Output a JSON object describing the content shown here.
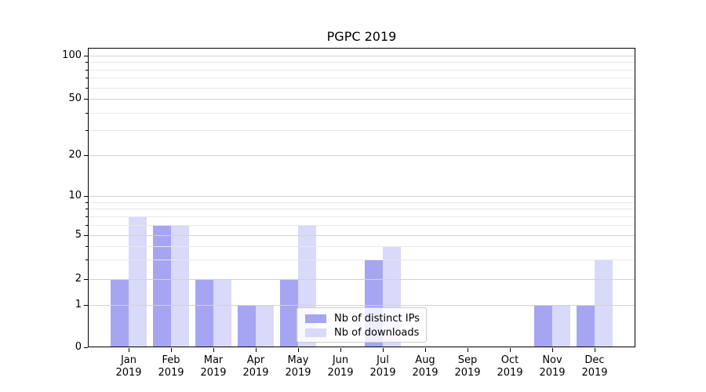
{
  "title": "PGPC 2019",
  "colors": {
    "ips_bar": "#a5a5f2",
    "downloads_bar": "#d9d9f9",
    "grid_major": "#d2d2d2",
    "grid_minor": "#e8e8e8",
    "axis": "#000000"
  },
  "legend": {
    "items": [
      {
        "label": "Nb of distinct IPs",
        "color": "#a5a5f2"
      },
      {
        "label": "Nb of downloads",
        "color": "#d9d9f9"
      }
    ]
  },
  "y_axis": {
    "tick_labels": [
      "100",
      "50",
      "20",
      "10",
      "5",
      "2",
      "1",
      "0"
    ]
  },
  "x_axis": {
    "months": [
      "Jan",
      "Feb",
      "Mar",
      "Apr",
      "May",
      "Jun",
      "Jul",
      "Aug",
      "Sep",
      "Oct",
      "Nov",
      "Dec"
    ],
    "year": "2019"
  },
  "chart_data": {
    "type": "bar",
    "title": "PGPC 2019",
    "categories": [
      "Jan 2019",
      "Feb 2019",
      "Mar 2019",
      "Apr 2019",
      "May 2019",
      "Jun 2019",
      "Jul 2019",
      "Aug 2019",
      "Sep 2019",
      "Oct 2019",
      "Nov 2019",
      "Dec 2019"
    ],
    "series": [
      {
        "name": "Nb of distinct IPs",
        "color": "#a5a5f2",
        "values": [
          2,
          6,
          2,
          1,
          2,
          0,
          3,
          0,
          0,
          0,
          1,
          1
        ]
      },
      {
        "name": "Nb of downloads",
        "color": "#d9d9f9",
        "values": [
          7,
          6,
          2,
          1,
          6,
          0,
          4,
          0,
          0,
          0,
          1,
          3
        ]
      }
    ],
    "yscale": "log-like with linear 0-1 segment",
    "y_major_ticks": [
      0,
      1,
      2,
      5,
      10,
      20,
      50,
      100
    ],
    "y_minor_ticks": [
      3,
      4,
      6,
      7,
      8,
      9,
      30,
      40,
      60,
      70,
      80,
      90
    ],
    "ylim": [
      0,
      115
    ],
    "grid": true,
    "legend_position": "lower center inside axes"
  }
}
